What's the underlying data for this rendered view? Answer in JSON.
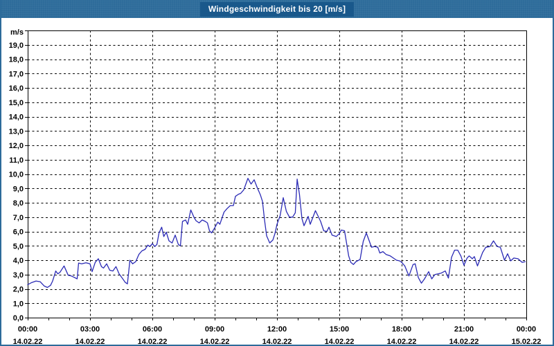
{
  "window": {
    "title": "Windgeschwindigkeit bis 20 [m/s]"
  },
  "colors": {
    "frame_blue": "#2d6b9a",
    "title_plate": "#19588b",
    "title_text": "#ffffff",
    "plot_background": "#ffffff",
    "grid": "#000000",
    "axis": "#000000",
    "tick_text": "#000000",
    "series_line": "#2a2ab5"
  },
  "chart_data": {
    "type": "line",
    "title": "Windgeschwindigkeit bis 20 [m/s]",
    "ylabel_unit": "m/s",
    "grid": "dashed, horizontal every 1.0 m/s, vertical every 3 h",
    "legend_position": "none",
    "y_axis": {
      "min": 0,
      "max": 20,
      "tick_step": 1,
      "tick_labels": [
        "0,0",
        "1,0",
        "2,0",
        "3,0",
        "4,0",
        "5,0",
        "6,0",
        "7,0",
        "8,0",
        "9,0",
        "10,0",
        "11,0",
        "12,0",
        "13,0",
        "14,0",
        "15,0",
        "16,0",
        "17,0",
        "18,0",
        "19,0"
      ]
    },
    "x_axis": {
      "span_hours": 24,
      "minor_tick_every_hours": 1,
      "major_ticks": [
        {
          "hour": 0,
          "time": "00:00",
          "date": "14.02.22"
        },
        {
          "hour": 3,
          "time": "03:00",
          "date": "14.02.22"
        },
        {
          "hour": 6,
          "time": "06:00",
          "date": "14.02.22"
        },
        {
          "hour": 9,
          "time": "09:00",
          "date": "14.02.22"
        },
        {
          "hour": 12,
          "time": "12:00",
          "date": "14.02.22"
        },
        {
          "hour": 15,
          "time": "15:00",
          "date": "14.02.22"
        },
        {
          "hour": 18,
          "time": "18:00",
          "date": "14.02.22"
        },
        {
          "hour": 21,
          "time": "21:00",
          "date": "14.02.22"
        },
        {
          "hour": 24,
          "time": "00:00",
          "date": "15.02.22"
        }
      ]
    },
    "series": [
      {
        "name": "Windgeschwindigkeit",
        "unit": "m/s",
        "points": [
          [
            0.0,
            2.3
          ],
          [
            0.2,
            2.45
          ],
          [
            0.4,
            2.55
          ],
          [
            0.6,
            2.5
          ],
          [
            0.8,
            2.2
          ],
          [
            0.95,
            2.1
          ],
          [
            1.1,
            2.25
          ],
          [
            1.2,
            2.55
          ],
          [
            1.35,
            3.25
          ],
          [
            1.45,
            3.05
          ],
          [
            1.55,
            3.15
          ],
          [
            1.75,
            3.6
          ],
          [
            1.95,
            2.95
          ],
          [
            2.1,
            2.9
          ],
          [
            2.25,
            2.8
          ],
          [
            2.38,
            2.7
          ],
          [
            2.45,
            3.8
          ],
          [
            2.6,
            3.75
          ],
          [
            2.8,
            3.82
          ],
          [
            3.0,
            3.75
          ],
          [
            3.1,
            3.2
          ],
          [
            3.25,
            3.85
          ],
          [
            3.4,
            4.1
          ],
          [
            3.55,
            3.55
          ],
          [
            3.65,
            3.45
          ],
          [
            3.8,
            3.75
          ],
          [
            3.95,
            3.3
          ],
          [
            4.1,
            3.25
          ],
          [
            4.25,
            3.55
          ],
          [
            4.4,
            3.05
          ],
          [
            4.55,
            2.75
          ],
          [
            4.7,
            2.45
          ],
          [
            4.8,
            2.35
          ],
          [
            4.92,
            4.0
          ],
          [
            5.05,
            3.75
          ],
          [
            5.2,
            3.9
          ],
          [
            5.35,
            4.4
          ],
          [
            5.5,
            4.65
          ],
          [
            5.65,
            4.75
          ],
          [
            5.78,
            5.05
          ],
          [
            5.88,
            4.95
          ],
          [
            6.0,
            5.15
          ],
          [
            6.12,
            4.95
          ],
          [
            6.22,
            5.1
          ],
          [
            6.32,
            5.9
          ],
          [
            6.45,
            6.3
          ],
          [
            6.55,
            5.65
          ],
          [
            6.67,
            5.95
          ],
          [
            6.8,
            5.35
          ],
          [
            6.95,
            5.2
          ],
          [
            7.1,
            5.75
          ],
          [
            7.25,
            5.1
          ],
          [
            7.35,
            5.0
          ],
          [
            7.45,
            6.7
          ],
          [
            7.6,
            6.8
          ],
          [
            7.7,
            6.5
          ],
          [
            7.85,
            7.5
          ],
          [
            8.0,
            7.0
          ],
          [
            8.1,
            6.75
          ],
          [
            8.25,
            6.6
          ],
          [
            8.4,
            6.8
          ],
          [
            8.55,
            6.7
          ],
          [
            8.65,
            6.6
          ],
          [
            8.75,
            6.05
          ],
          [
            8.85,
            5.9
          ],
          [
            9.0,
            6.25
          ],
          [
            9.15,
            6.65
          ],
          [
            9.25,
            6.5
          ],
          [
            9.45,
            7.35
          ],
          [
            9.6,
            7.6
          ],
          [
            9.75,
            7.8
          ],
          [
            9.9,
            7.8
          ],
          [
            10.0,
            8.45
          ],
          [
            10.15,
            8.6
          ],
          [
            10.25,
            8.65
          ],
          [
            10.4,
            8.9
          ],
          [
            10.5,
            9.3
          ],
          [
            10.6,
            9.7
          ],
          [
            10.75,
            9.3
          ],
          [
            10.9,
            9.6
          ],
          [
            11.05,
            9.05
          ],
          [
            11.2,
            8.55
          ],
          [
            11.3,
            8.1
          ],
          [
            11.4,
            6.8
          ],
          [
            11.5,
            5.7
          ],
          [
            11.65,
            5.2
          ],
          [
            11.8,
            5.4
          ],
          [
            11.9,
            5.85
          ],
          [
            12.0,
            6.5
          ],
          [
            12.15,
            7.1
          ],
          [
            12.3,
            8.35
          ],
          [
            12.45,
            7.4
          ],
          [
            12.6,
            7.0
          ],
          [
            12.75,
            7.0
          ],
          [
            12.88,
            7.3
          ],
          [
            12.97,
            9.65
          ],
          [
            13.08,
            8.6
          ],
          [
            13.2,
            6.9
          ],
          [
            13.3,
            6.4
          ],
          [
            13.5,
            7.05
          ],
          [
            13.6,
            6.5
          ],
          [
            13.85,
            7.45
          ],
          [
            14.1,
            6.7
          ],
          [
            14.25,
            6.05
          ],
          [
            14.4,
            6.0
          ],
          [
            14.5,
            6.3
          ],
          [
            14.65,
            5.75
          ],
          [
            14.85,
            5.65
          ],
          [
            15.0,
            5.85
          ],
          [
            15.1,
            6.1
          ],
          [
            15.25,
            6.05
          ],
          [
            15.45,
            4.3
          ],
          [
            15.55,
            3.85
          ],
          [
            15.68,
            3.7
          ],
          [
            15.8,
            3.9
          ],
          [
            16.0,
            4.05
          ],
          [
            16.15,
            5.3
          ],
          [
            16.3,
            5.9
          ],
          [
            16.45,
            5.3
          ],
          [
            16.55,
            4.9
          ],
          [
            16.7,
            4.95
          ],
          [
            16.85,
            4.9
          ],
          [
            16.95,
            4.5
          ],
          [
            17.1,
            4.6
          ],
          [
            17.25,
            4.4
          ],
          [
            17.45,
            4.3
          ],
          [
            17.6,
            4.15
          ],
          [
            17.75,
            4.0
          ],
          [
            17.9,
            3.95
          ],
          [
            18.0,
            3.85
          ],
          [
            18.15,
            3.6
          ],
          [
            18.35,
            2.9
          ],
          [
            18.55,
            3.7
          ],
          [
            18.65,
            3.75
          ],
          [
            18.8,
            2.8
          ],
          [
            18.95,
            2.4
          ],
          [
            19.1,
            2.7
          ],
          [
            19.3,
            3.2
          ],
          [
            19.45,
            2.7
          ],
          [
            19.6,
            3.0
          ],
          [
            19.75,
            3.05
          ],
          [
            19.9,
            3.1
          ],
          [
            20.1,
            3.25
          ],
          [
            20.25,
            2.75
          ],
          [
            20.4,
            4.2
          ],
          [
            20.55,
            4.7
          ],
          [
            20.7,
            4.7
          ],
          [
            20.85,
            4.3
          ],
          [
            21.0,
            3.65
          ],
          [
            21.15,
            4.15
          ],
          [
            21.25,
            4.3
          ],
          [
            21.4,
            4.1
          ],
          [
            21.5,
            4.25
          ],
          [
            21.65,
            3.6
          ],
          [
            21.9,
            4.55
          ],
          [
            22.05,
            4.9
          ],
          [
            22.25,
            4.95
          ],
          [
            22.42,
            5.35
          ],
          [
            22.6,
            4.95
          ],
          [
            22.75,
            4.9
          ],
          [
            22.95,
            4.0
          ],
          [
            23.1,
            4.45
          ],
          [
            23.25,
            3.95
          ],
          [
            23.4,
            4.15
          ],
          [
            23.6,
            4.1
          ],
          [
            23.8,
            3.85
          ],
          [
            23.95,
            3.9
          ]
        ]
      }
    ]
  }
}
